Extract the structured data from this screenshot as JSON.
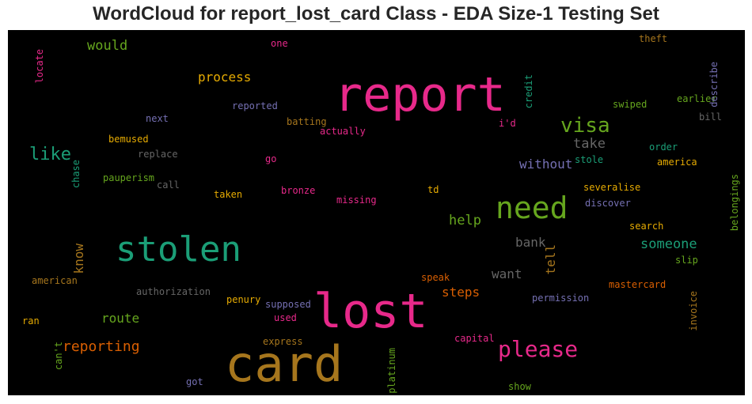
{
  "chart_data": {
    "type": "wordcloud",
    "title": "WordCloud for report_lost_card Class - EDA Size-1 Testing Set",
    "background": "#000000",
    "words": [
      {
        "text": "report",
        "color": "#e7298a"
      },
      {
        "text": "lost",
        "color": "#e7298a"
      },
      {
        "text": "card",
        "color": "#a6761d"
      },
      {
        "text": "stolen",
        "color": "#1b9e77"
      },
      {
        "text": "need",
        "color": "#66a61e"
      },
      {
        "text": "visa",
        "color": "#66a61e"
      },
      {
        "text": "please",
        "color": "#e7298a"
      },
      {
        "text": "like",
        "color": "#1b9e77"
      },
      {
        "text": "reporting",
        "color": "#d95f02"
      },
      {
        "text": "process",
        "color": "#e6ab02"
      },
      {
        "text": "would",
        "color": "#66a61e"
      },
      {
        "text": "without",
        "color": "#7570b3"
      },
      {
        "text": "take",
        "color": "#666666"
      },
      {
        "text": "help",
        "color": "#66a61e"
      },
      {
        "text": "someone",
        "color": "#1b9e77"
      },
      {
        "text": "bank",
        "color": "#666666"
      },
      {
        "text": "know",
        "color": "#a6761d"
      },
      {
        "text": "tell",
        "color": "#a6761d"
      },
      {
        "text": "want",
        "color": "#666666"
      },
      {
        "text": "steps",
        "color": "#d95f02"
      },
      {
        "text": "route",
        "color": "#66a61e"
      },
      {
        "text": "reported",
        "color": "#7570b3"
      },
      {
        "text": "next",
        "color": "#7570b3"
      },
      {
        "text": "batting",
        "color": "#a6761d"
      },
      {
        "text": "actually",
        "color": "#e7298a"
      },
      {
        "text": "i'd",
        "color": "#e7298a"
      },
      {
        "text": "bemused",
        "color": "#e6ab02"
      },
      {
        "text": "replace",
        "color": "#666666"
      },
      {
        "text": "go",
        "color": "#e7298a"
      },
      {
        "text": "pauperism",
        "color": "#66a61e"
      },
      {
        "text": "call",
        "color": "#666666"
      },
      {
        "text": "taken",
        "color": "#e6ab02"
      },
      {
        "text": "bronze",
        "color": "#e7298a"
      },
      {
        "text": "missing",
        "color": "#e7298a"
      },
      {
        "text": "td",
        "color": "#e6ab02"
      },
      {
        "text": "one",
        "color": "#e7298a"
      },
      {
        "text": "theft",
        "color": "#a6761d"
      },
      {
        "text": "swiped",
        "color": "#66a61e"
      },
      {
        "text": "earlier",
        "color": "#66a61e"
      },
      {
        "text": "bill",
        "color": "#666666"
      },
      {
        "text": "order",
        "color": "#1b9e77"
      },
      {
        "text": "america",
        "color": "#e6ab02"
      },
      {
        "text": "stole",
        "color": "#1b9e77"
      },
      {
        "text": "severalise",
        "color": "#e6ab02"
      },
      {
        "text": "discover",
        "color": "#7570b3"
      },
      {
        "text": "search",
        "color": "#e6ab02"
      },
      {
        "text": "slip",
        "color": "#66a61e"
      },
      {
        "text": "mastercard",
        "color": "#d95f02"
      },
      {
        "text": "permission",
        "color": "#7570b3"
      },
      {
        "text": "american",
        "color": "#a6761d"
      },
      {
        "text": "authorization",
        "color": "#666666"
      },
      {
        "text": "penury",
        "color": "#e6ab02"
      },
      {
        "text": "supposed",
        "color": "#7570b3"
      },
      {
        "text": "used",
        "color": "#e7298a"
      },
      {
        "text": "speak",
        "color": "#d95f02"
      },
      {
        "text": "ran",
        "color": "#e6ab02"
      },
      {
        "text": "express",
        "color": "#a6761d"
      },
      {
        "text": "capital",
        "color": "#e7298a"
      },
      {
        "text": "got",
        "color": "#7570b3"
      },
      {
        "text": "show",
        "color": "#66a61e"
      },
      {
        "text": "locate",
        "color": "#e7298a"
      },
      {
        "text": "chase",
        "color": "#1b9e77"
      },
      {
        "text": "can't",
        "color": "#66a61e"
      },
      {
        "text": "credit",
        "color": "#1b9e77"
      },
      {
        "text": "describe",
        "color": "#7570b3"
      },
      {
        "text": "belongings",
        "color": "#66a61e"
      },
      {
        "text": "invoice",
        "color": "#a6761d"
      },
      {
        "text": "platinum",
        "color": "#66a61e"
      }
    ]
  }
}
